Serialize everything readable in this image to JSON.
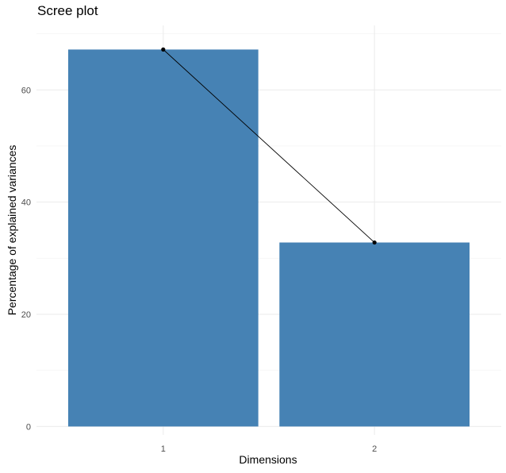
{
  "chart_data": {
    "type": "bar",
    "title": "Scree plot",
    "xlabel": "Dimensions",
    "ylabel": "Percentage of explained variances",
    "categories": [
      "1",
      "2"
    ],
    "values": [
      67.2,
      32.8
    ],
    "line_overlay": true,
    "ylim": [
      -1.5,
      71.5
    ],
    "y_ticks": [
      0,
      20,
      40,
      60
    ],
    "grid": true,
    "colors": {
      "bar": "#4682B4",
      "line": "#000000",
      "grid_major": "#EBEBEB",
      "grid_minor": "#F2F2F2"
    }
  }
}
